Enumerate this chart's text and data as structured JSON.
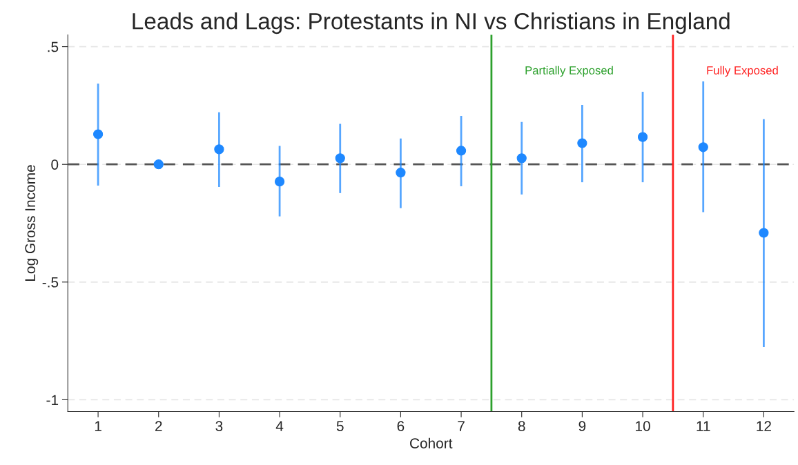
{
  "chart_data": {
    "type": "scatter",
    "title": "Leads and Lags: Protestants in NI vs Christians in England",
    "xlabel": "Cohort",
    "ylabel": "Log Gross Income",
    "x": [
      1,
      2,
      3,
      4,
      5,
      6,
      7,
      8,
      9,
      10,
      11,
      12
    ],
    "xlim": [
      0.5,
      12.5
    ],
    "xticks": [
      1,
      2,
      3,
      4,
      5,
      6,
      7,
      8,
      9,
      10,
      11,
      12
    ],
    "series": [
      {
        "color": "#1e88ff",
        "values": [
          0.128,
          0,
          0.064,
          -0.073,
          0.026,
          -0.035,
          0.058,
          0.026,
          0.09,
          0.116,
          0.073,
          -0.291
        ],
        "errors": [
          [
            -0.09,
            0.343
          ],
          null,
          [
            -0.096,
            0.221
          ],
          [
            -0.221,
            0.078
          ],
          [
            -0.122,
            0.172
          ],
          [
            -0.186,
            0.11
          ],
          [
            -0.093,
            0.206
          ],
          [
            -0.128,
            0.18
          ],
          [
            -0.076,
            0.253
          ],
          [
            -0.076,
            0.308
          ],
          [
            -0.203,
            0.352
          ],
          [
            -0.776,
            0.192
          ]
        ]
      }
    ],
    "ylim": [
      -1.05,
      0.55
    ],
    "yticks": [
      {
        "value": 0.5,
        "label": ".5"
      },
      0,
      {
        "value": -0.5,
        "label": "-.5"
      },
      -1
    ],
    "ref_lines": [
      {
        "axis": "y",
        "value": 0,
        "color": "#555555",
        "line_style": "dashed"
      },
      {
        "axis": "x",
        "value": 7.5,
        "label": "Partially Exposed",
        "color": "#2ca02c"
      },
      {
        "axis": "x",
        "value": 10.5,
        "label": "Fully Exposed",
        "color": "#ff2020"
      }
    ],
    "grid": "y",
    "marker": "circle",
    "legend": false
  }
}
